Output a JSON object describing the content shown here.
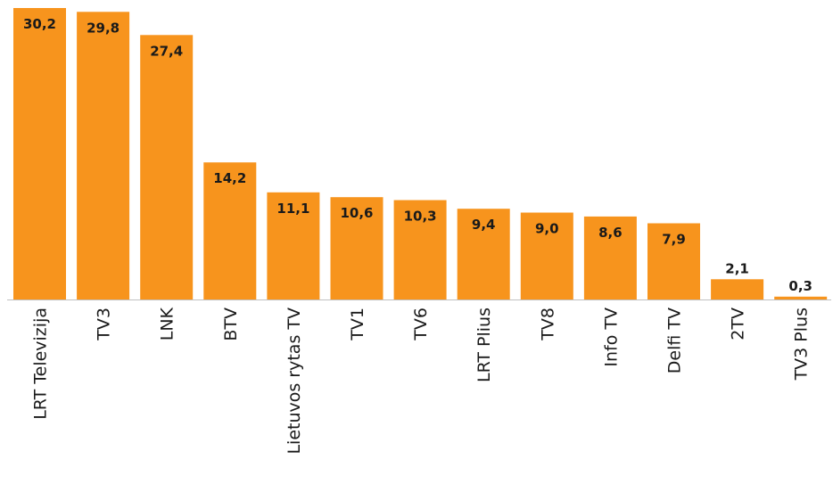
{
  "chart_data": {
    "type": "bar",
    "title": "",
    "xlabel": "",
    "ylabel": "",
    "categories": [
      "LRT Televizija",
      "TV3",
      "LNK",
      "BTV",
      "Lietuvos rytas TV",
      "TV1",
      "TV6",
      "LRT Plius",
      "TV8",
      "Info TV",
      "Delfi TV",
      "2TV",
      "TV3 Plus"
    ],
    "values": [
      30.2,
      29.8,
      27.4,
      14.2,
      11.1,
      10.6,
      10.3,
      9.4,
      9.0,
      8.6,
      7.9,
      2.1,
      0.3
    ],
    "value_labels": [
      "30,2",
      "29,8",
      "27,4",
      "14,2",
      "11,1",
      "10,6",
      "10,3",
      "9,4",
      "9,0",
      "8,6",
      "7,9",
      "2,1",
      "0,3"
    ],
    "ylim": [
      0,
      30.2
    ],
    "grid": false,
    "legend": "none",
    "bar_color": "#F7941D",
    "axis_color": "#BFBFBF",
    "text_color": "#1a1a1a"
  }
}
